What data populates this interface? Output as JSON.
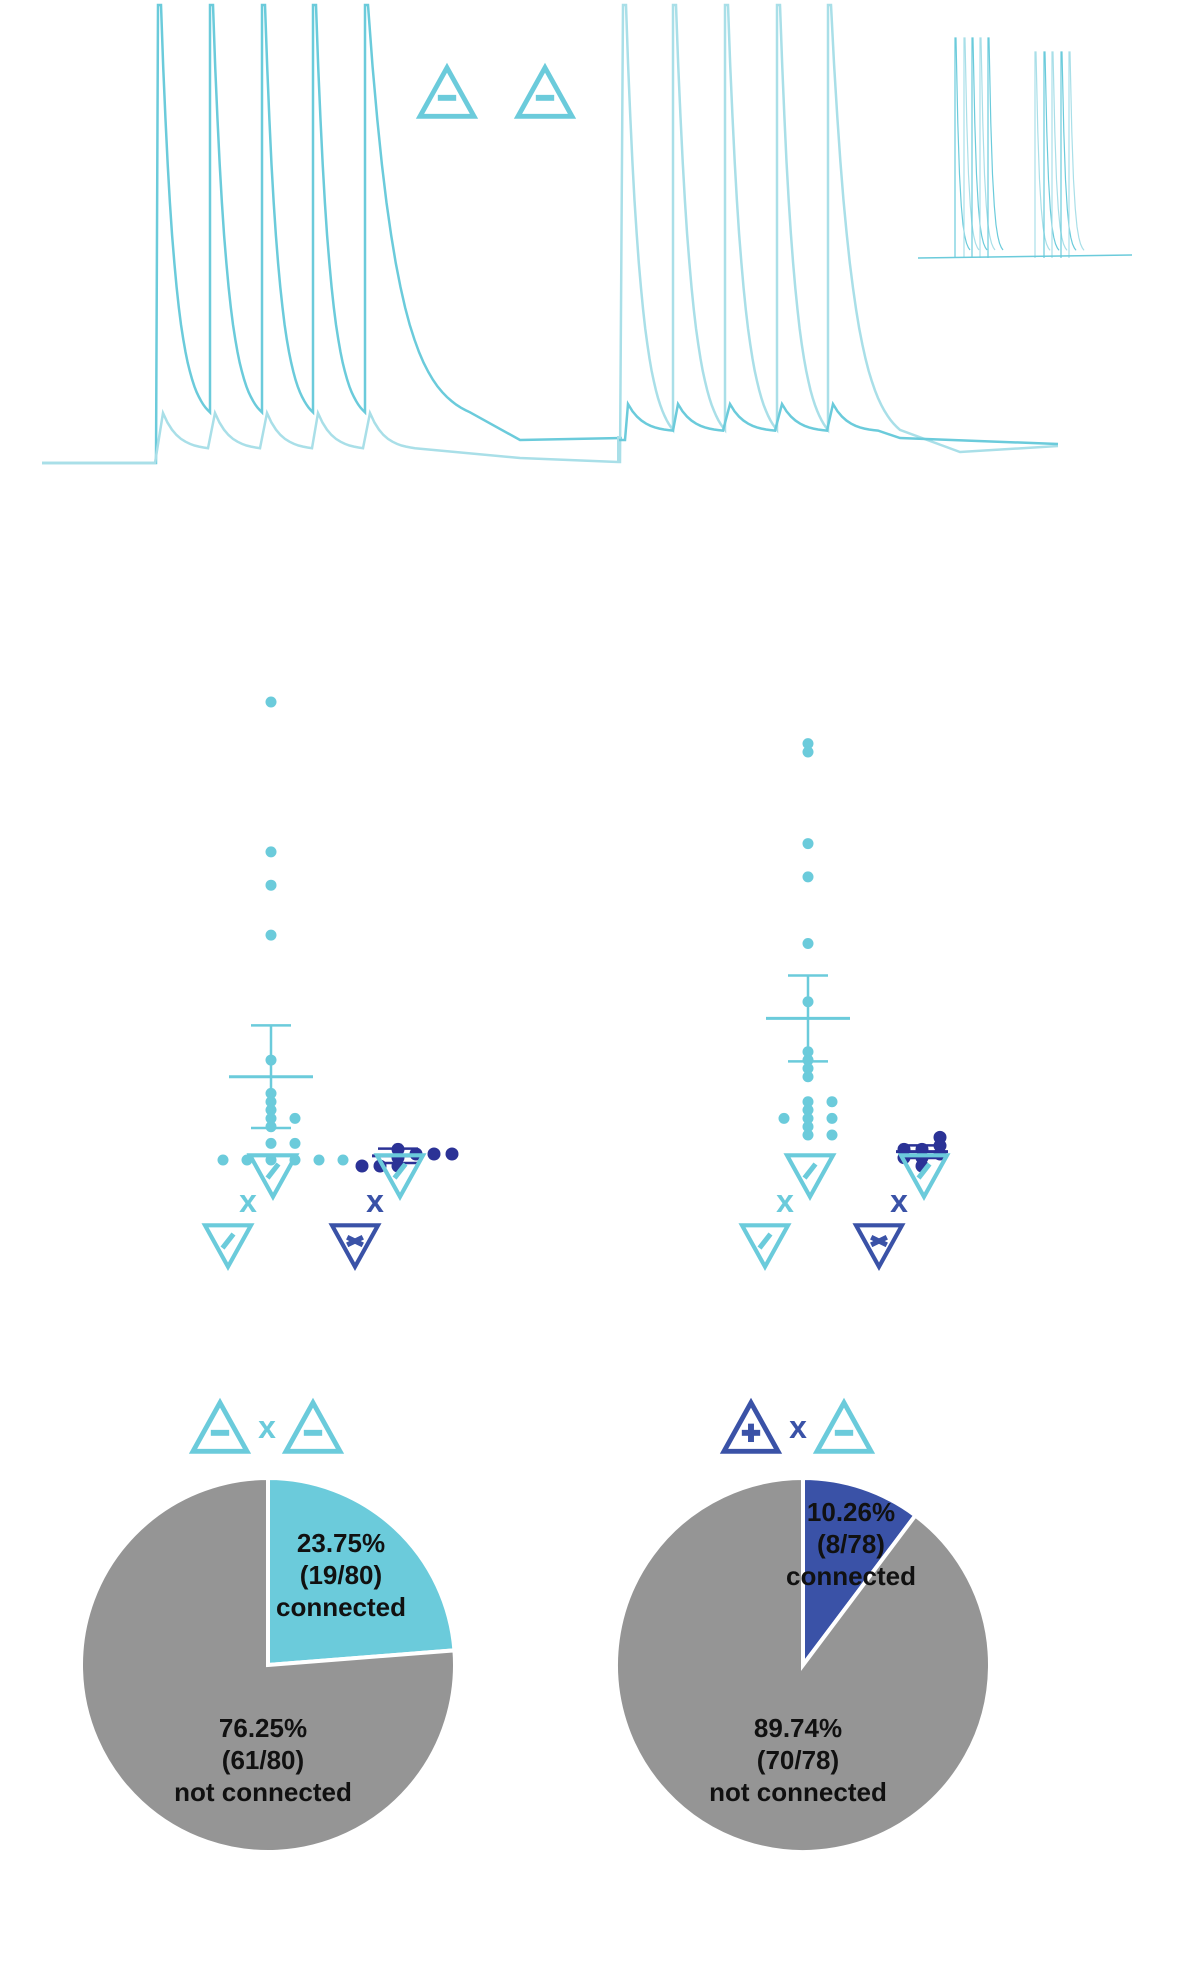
{
  "colors": {
    "light": "#6bcbdb",
    "light_pale": "#a9dfe8",
    "dark": "#2b3296",
    "dark_pie": "#3a52a7",
    "gray": "#959595"
  },
  "traces": {
    "left_block": {
      "spikes": 5,
      "state": "action potentials and EPSPs, 5 stimuli"
    },
    "right_block": {
      "spikes": 5,
      "state": "action potentials and EPSPs, 5 stimuli"
    },
    "inset": {
      "spikes": 10
    }
  },
  "legend_top": {
    "pre_cell": "triangle-minus-icon",
    "post_cell": "triangle-minus-icon"
  },
  "chart_data": [
    {
      "type": "scatter",
      "panel": "left",
      "groups": [
        {
          "cell_pair": "minus x minus",
          "color": "light",
          "values": [
            95,
            77,
            73,
            67,
            52,
            48,
            47,
            46,
            45,
            45,
            44,
            42,
            42,
            40,
            40,
            40,
            40,
            40,
            40
          ],
          "mean": 50,
          "sem": 4
        },
        {
          "cell_pair": "plus x minus",
          "color": "dark",
          "values": [
            42,
            41,
            40,
            40,
            40,
            40,
            40,
            40
          ],
          "mean": 40.5,
          "sem": 0.5
        }
      ]
    },
    {
      "type": "scatter",
      "panel": "right",
      "groups": [
        {
          "cell_pair": "minus x minus",
          "color": "light",
          "values": [
            90,
            89,
            78,
            74,
            66,
            59,
            53,
            52,
            51,
            50,
            47,
            47,
            46,
            45,
            45,
            45,
            44,
            43,
            43
          ],
          "mean": 57,
          "sem": 3
        },
        {
          "cell_pair": "plus x minus",
          "color": "dark",
          "values": [
            42,
            42,
            42,
            41,
            41,
            41,
            40,
            40
          ],
          "mean": 41,
          "sem": 0.4
        }
      ]
    },
    {
      "type": "pie",
      "panel": "bottom-left",
      "pair_icons": [
        "triangle-minus-icon",
        "x",
        "triangle-minus-icon"
      ],
      "slices": [
        {
          "pct_text": "23.75%",
          "count_text": "(19/80)",
          "label": "connected",
          "value": 19,
          "color": "light"
        },
        {
          "pct_text": "76.25%",
          "count_text": "(61/80)",
          "label": "not connected",
          "value": 61,
          "color": "gray"
        }
      ]
    },
    {
      "type": "pie",
      "panel": "bottom-right",
      "pair_icons": [
        "triangle-plus-icon",
        "x",
        "triangle-minus-icon"
      ],
      "slices": [
        {
          "pct_text": "10.26%",
          "count_text": "(8/78)",
          "label": "connected",
          "value": 8,
          "color": "dark_pie"
        },
        {
          "pct_text": "89.74%",
          "count_text": "(70/78)",
          "label": "not connected",
          "value": 70,
          "color": "gray"
        }
      ]
    }
  ],
  "cross_symbol": "x"
}
